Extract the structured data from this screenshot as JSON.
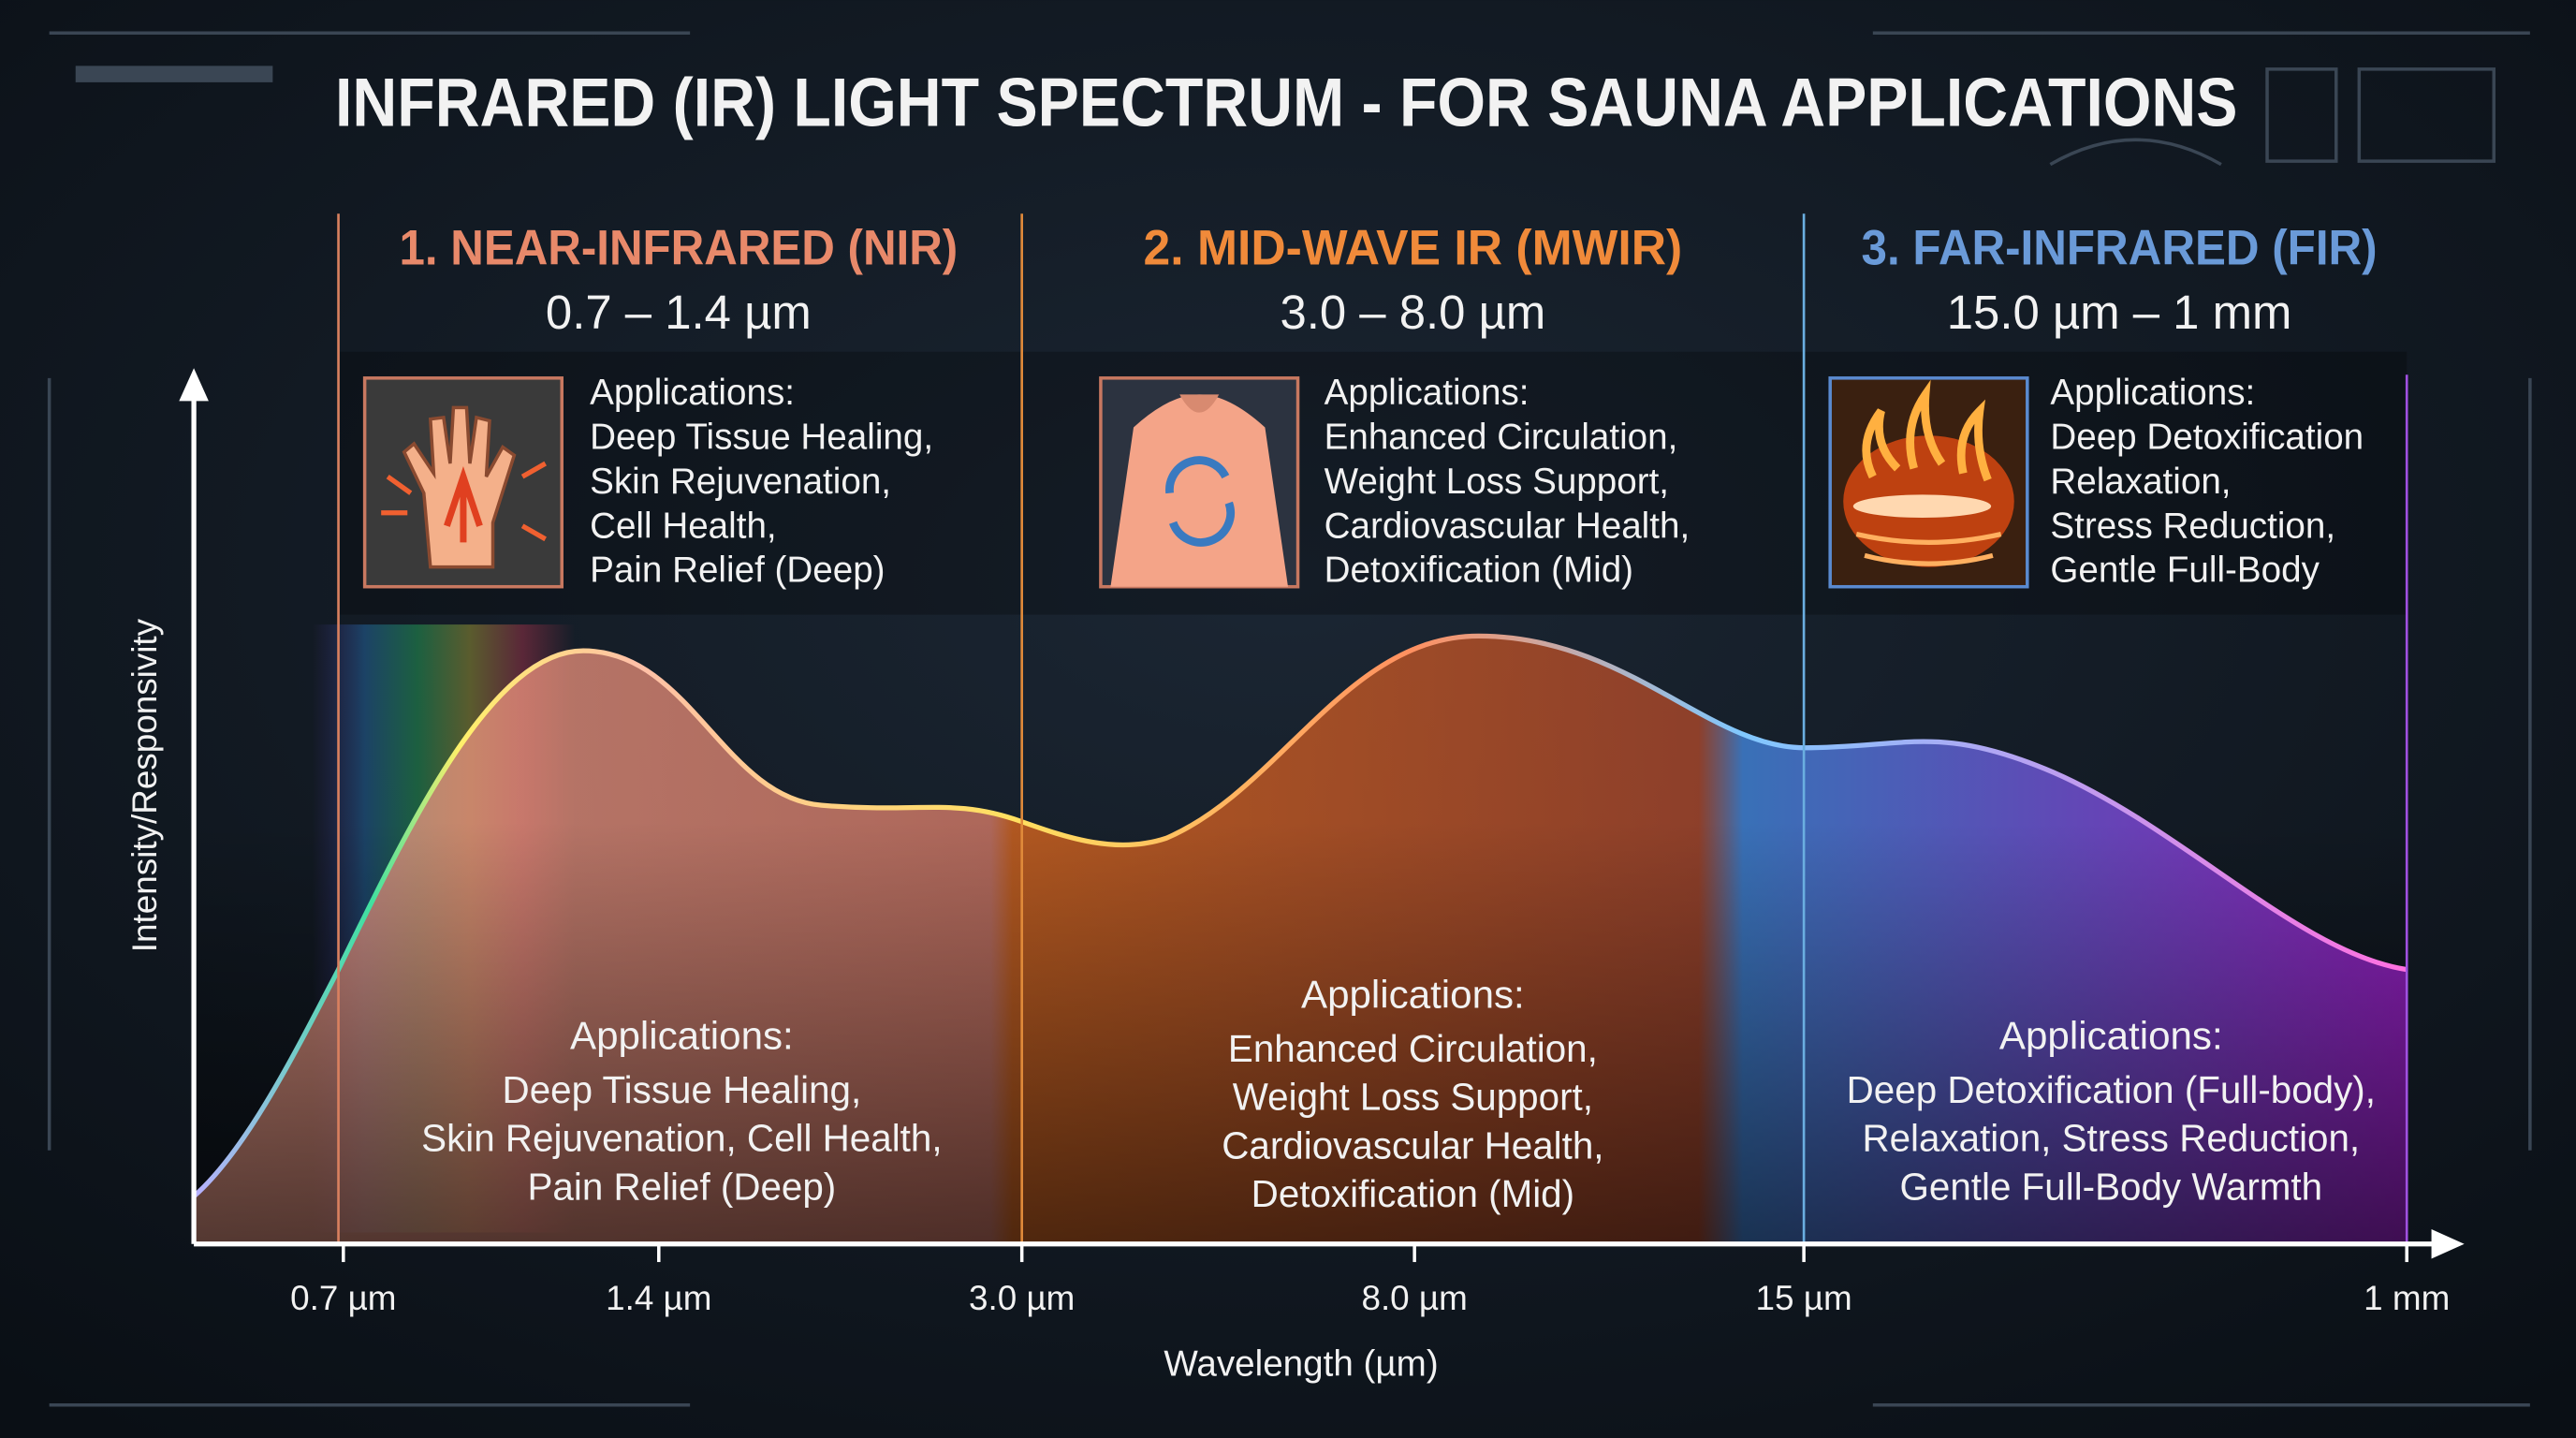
{
  "title": "INFRARED (IR) LIGHT SPECTRUM - FOR SAUNA APPLICATIONS",
  "y_axis_label": "Intensity/Responsivity",
  "x_axis_label": "Wavelength (µm)",
  "x_ticks": [
    "0.7 µm",
    "1.4 µm",
    "3.0 µm",
    "8.0 µm",
    "15 µm",
    "1 mm"
  ],
  "bands": [
    {
      "title": "1. NEAR-INFRARED (NIR)",
      "range": "0.7 – 1.4 µm",
      "panel_heading": "Applications:",
      "panel_lines": [
        "Deep Tissue Healing,",
        "Skin Rejuvenation,",
        "Cell Health,",
        "Pain Relief (Deep)"
      ],
      "summary_heading": "Applications:",
      "summary_lines": [
        "Deep Tissue Healing,",
        "Skin Rejuvenation, Cell Health,",
        "Pain Relief (Deep)"
      ]
    },
    {
      "title": "2. MID-WAVE IR (MWIR)",
      "range": "3.0 – 8.0 µm",
      "panel_heading": "Applications:",
      "panel_lines": [
        "Enhanced Circulation,",
        "Weight Loss Support,",
        "Cardiovascular Health,",
        "Detoxification (Mid)"
      ],
      "summary_heading": "Applications:",
      "summary_lines": [
        "Enhanced Circulation,",
        "Weight Loss Support,",
        "Cardiovascular Health,",
        "Detoxification (Mid)"
      ]
    },
    {
      "title": "3. FAR-INFRARED (FIR)",
      "range": "15.0 µm – 1 mm",
      "panel_heading": "Applications:",
      "panel_lines": [
        "Deep Detoxification",
        "Relaxation,",
        "Stress Reduction,",
        "Gentle Full-Body"
      ],
      "summary_heading": "Applications:",
      "summary_lines": [
        "Deep Detoxification (Full-body),",
        "Relaxation, Stress Reduction,",
        "Gentle Full-Body Warmth"
      ]
    }
  ]
}
